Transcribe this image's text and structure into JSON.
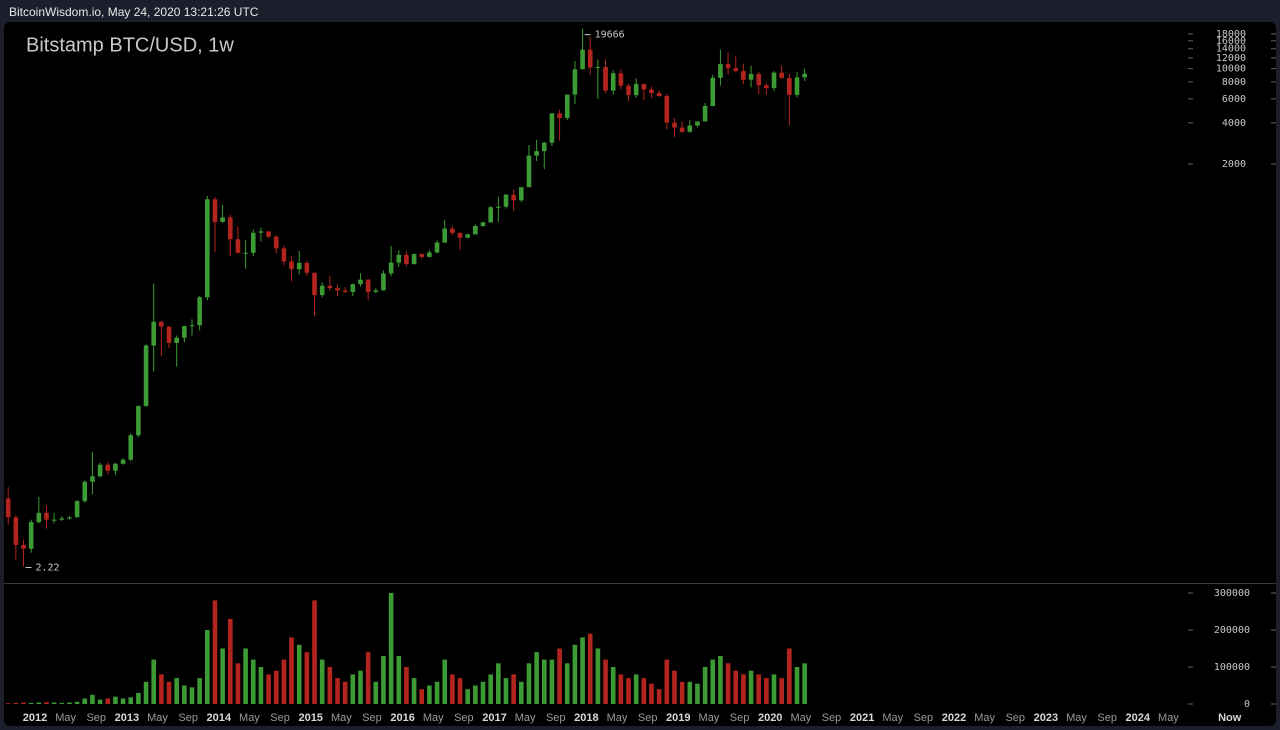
{
  "header": "BitcoinWisdom.io, May 24, 2020 13:21:26 UTC",
  "chart_data": {
    "type": "candlestick",
    "title": "Bitstamp BTC/USD, 1w",
    "log_scale": true,
    "up_color": "#3d9b35",
    "down_color": "#b3241e",
    "x": [
      "2011-09",
      "2011-10",
      "2011-11",
      "2011-12",
      "2012-01",
      "2012-02",
      "2012-03",
      "2012-04",
      "2012-05",
      "2012-06",
      "2012-07",
      "2012-08",
      "2012-09",
      "2012-10",
      "2012-11",
      "2012-12",
      "2013-01",
      "2013-02",
      "2013-03",
      "2013-04",
      "2013-05",
      "2013-06",
      "2013-07",
      "2013-08",
      "2013-09",
      "2013-10",
      "2013-11",
      "2013-12",
      "2014-01",
      "2014-02",
      "2014-03",
      "2014-04",
      "2014-05",
      "2014-06",
      "2014-07",
      "2014-08",
      "2014-09",
      "2014-10",
      "2014-11",
      "2014-12",
      "2015-01",
      "2015-02",
      "2015-03",
      "2015-04",
      "2015-05",
      "2015-06",
      "2015-07",
      "2015-08",
      "2015-09",
      "2015-10",
      "2015-11",
      "2015-12",
      "2016-01",
      "2016-02",
      "2016-03",
      "2016-04",
      "2016-05",
      "2016-06",
      "2016-07",
      "2016-08",
      "2016-09",
      "2016-10",
      "2016-11",
      "2016-12",
      "2017-01",
      "2017-02",
      "2017-03",
      "2017-04",
      "2017-05",
      "2017-06",
      "2017-07",
      "2017-08",
      "2017-09",
      "2017-10",
      "2017-11",
      "2017-12",
      "2018-01",
      "2018-02",
      "2018-03",
      "2018-04",
      "2018-05",
      "2018-06",
      "2018-07",
      "2018-08",
      "2018-09",
      "2018-10",
      "2018-11",
      "2018-12",
      "2019-01",
      "2019-02",
      "2019-03",
      "2019-04",
      "2019-05",
      "2019-06",
      "2019-07",
      "2019-08",
      "2019-09",
      "2019-10",
      "2019-11",
      "2019-12",
      "2020-01",
      "2020-02",
      "2020-03",
      "2020-04",
      "2020-05"
    ],
    "open": [
      7,
      5.1,
      3.2,
      3.0,
      4.7,
      5.5,
      4.9,
      4.9,
      5.0,
      5.1,
      6.7,
      9.3,
      10.2,
      12.4,
      11.2,
      12.6,
      13.5,
      20.4,
      33.4,
      93,
      139,
      128,
      97,
      106,
      129,
      131,
      210,
      1100,
      750,
      810,
      560,
      445,
      445,
      625,
      640,
      585,
      480,
      385,
      338,
      375,
      318,
      218,
      255,
      245,
      236,
      230,
      262,
      283,
      230,
      236,
      314,
      377,
      430,
      368,
      436,
      415,
      448,
      530,
      670,
      624,
      575,
      609,
      700,
      745,
      960,
      970,
      1190,
      1080,
      1350,
      2300,
      2480,
      2860,
      4700,
      4340,
      6450,
      9900,
      13800,
      10200,
      10300,
      6900,
      9250,
      7500,
      6390,
      7730,
      7030,
      6630,
      6300,
      4020,
      3700,
      3440,
      3830,
      4100,
      5320,
      8570,
      10800,
      10080,
      9600,
      8300,
      9150,
      7550,
      7200,
      9350,
      8550,
      6420,
      8630
    ],
    "high": [
      8.5,
      5.3,
      3.5,
      4.9,
      7.2,
      6.2,
      5.5,
      5.2,
      5.2,
      6.8,
      9.5,
      15.4,
      12.8,
      12.9,
      12.8,
      13.8,
      21,
      34,
      95,
      266,
      140,
      129,
      110,
      130,
      145,
      215,
      1163,
      1140,
      1000,
      850,
      700,
      550,
      660,
      680,
      640,
      600,
      500,
      420,
      460,
      390,
      320,
      270,
      300,
      260,
      250,
      265,
      315,
      285,
      245,
      330,
      500,
      465,
      460,
      440,
      440,
      465,
      550,
      780,
      700,
      625,
      615,
      720,
      750,
      980,
      1150,
      1200,
      1300,
      1350,
      2750,
      3000,
      2900,
      4700,
      4980,
      6450,
      11400,
      19666,
      17200,
      11700,
      11700,
      9750,
      9950,
      7750,
      8500,
      7750,
      7400,
      6900,
      6550,
      4330,
      4100,
      4200,
      4100,
      5600,
      9000,
      13800,
      13200,
      12300,
      10900,
      10500,
      9500,
      7750,
      9600,
      10500,
      9200,
      9450,
      10000
    ],
    "low": [
      4.5,
      2.5,
      2.22,
      2.8,
      4.6,
      4.2,
      4.6,
      4.8,
      4.9,
      5.1,
      6.5,
      7.5,
      10.0,
      10.6,
      10.5,
      12.4,
      13.2,
      19.8,
      33,
      60,
      78,
      89,
      65,
      98,
      110,
      120,
      200,
      450,
      740,
      420,
      440,
      340,
      420,
      540,
      570,
      440,
      360,
      275,
      310,
      300,
      152,
      210,
      235,
      215,
      225,
      215,
      252,
      200,
      225,
      235,
      300,
      350,
      355,
      365,
      400,
      412,
      440,
      525,
      600,
      470,
      570,
      605,
      690,
      740,
      750,
      940,
      900,
      1050,
      1350,
      2100,
      1830,
      2700,
      2970,
      4200,
      5500,
      10000,
      9000,
      6000,
      6600,
      6430,
      7060,
      5800,
      6100,
      5880,
      6100,
      6200,
      3600,
      3150,
      3350,
      3380,
      3700,
      4080,
      5300,
      7500,
      9100,
      9400,
      7700,
      7300,
      6500,
      6430,
      6850,
      8450,
      3850,
      6150,
      8100
    ],
    "close": [
      5.1,
      3.2,
      3.0,
      4.7,
      5.5,
      4.9,
      4.9,
      5.0,
      5.1,
      6.7,
      9.3,
      10.2,
      12.4,
      11.2,
      12.6,
      13.5,
      20.4,
      33.4,
      93,
      139,
      128,
      97,
      106,
      129,
      131,
      210,
      1100,
      750,
      810,
      560,
      445,
      445,
      625,
      640,
      585,
      480,
      385,
      338,
      375,
      318,
      218,
      255,
      245,
      236,
      230,
      262,
      283,
      230,
      236,
      314,
      377,
      430,
      368,
      436,
      415,
      448,
      530,
      670,
      624,
      575,
      609,
      700,
      745,
      960,
      970,
      1190,
      1080,
      1350,
      2300,
      2480,
      2860,
      4700,
      4340,
      6450,
      9900,
      13800,
      10200,
      10300,
      6900,
      9250,
      7500,
      6390,
      7730,
      7030,
      6630,
      6300,
      4020,
      3700,
      3440,
      3830,
      4100,
      5320,
      8570,
      10800,
      10080,
      9600,
      8300,
      9150,
      7550,
      7200,
      9350,
      8550,
      6420,
      8630,
      9170
    ],
    "volume": [
      2000,
      3000,
      4000,
      3000,
      4000,
      5000,
      4000,
      3000,
      4000,
      6000,
      15000,
      25000,
      12000,
      15000,
      20000,
      15000,
      18000,
      30000,
      60000,
      120000,
      80000,
      60000,
      70000,
      50000,
      45000,
      70000,
      200000,
      280000,
      150000,
      230000,
      110000,
      150000,
      120000,
      100000,
      80000,
      90000,
      120000,
      180000,
      160000,
      140000,
      280000,
      120000,
      100000,
      70000,
      60000,
      80000,
      90000,
      140000,
      60000,
      130000,
      300000,
      130000,
      100000,
      70000,
      40000,
      50000,
      60000,
      120000,
      80000,
      70000,
      40000,
      50000,
      60000,
      80000,
      110000,
      70000,
      80000,
      60000,
      110000,
      140000,
      120000,
      120000,
      150000,
      110000,
      160000,
      180000,
      190000,
      150000,
      120000,
      100000,
      80000,
      70000,
      80000,
      70000,
      55000,
      40000,
      120000,
      90000,
      60000,
      60000,
      55000,
      100000,
      120000,
      130000,
      110000,
      90000,
      80000,
      90000,
      80000,
      70000,
      80000,
      70000,
      150000,
      100000,
      110000
    ],
    "ylim": [
      1.68,
      22000
    ],
    "yticks": [
      2000,
      4000,
      6000,
      8000,
      10000,
      12000,
      14000,
      16000,
      18000
    ],
    "volume_ylim": [
      0,
      327000
    ],
    "volume_yticks": [
      0,
      100000,
      200000,
      300000
    ],
    "xticks": [
      {
        "value": "2012-01",
        "label": "2012"
      },
      {
        "value": "2012-05",
        "label": "May"
      },
      {
        "value": "2012-09",
        "label": "Sep"
      },
      {
        "value": "2013-01",
        "label": "2013"
      },
      {
        "value": "2013-05",
        "label": "May"
      },
      {
        "value": "2013-09",
        "label": "Sep"
      },
      {
        "value": "2014-01",
        "label": "2014"
      },
      {
        "value": "2014-05",
        "label": "May"
      },
      {
        "value": "2014-09",
        "label": "Sep"
      },
      {
        "value": "2015-01",
        "label": "2015"
      },
      {
        "value": "2015-05",
        "label": "May"
      },
      {
        "value": "2015-09",
        "label": "Sep"
      },
      {
        "value": "2016-01",
        "label": "2016"
      },
      {
        "value": "2016-05",
        "label": "May"
      },
      {
        "value": "2016-09",
        "label": "Sep"
      },
      {
        "value": "2017-01",
        "label": "2017"
      },
      {
        "value": "2017-05",
        "label": "May"
      },
      {
        "value": "2017-09",
        "label": "Sep"
      },
      {
        "value": "2018-01",
        "label": "2018"
      },
      {
        "value": "2018-05",
        "label": "May"
      },
      {
        "value": "2018-09",
        "label": "Sep"
      },
      {
        "value": "2019-01",
        "label": "2019"
      },
      {
        "value": "2019-05",
        "label": "May"
      },
      {
        "value": "2019-09",
        "label": "Sep"
      },
      {
        "value": "2020-01",
        "label": "2020"
      },
      {
        "value": "2020-05",
        "label": "May"
      },
      {
        "value": "2020-09",
        "label": "Sep"
      },
      {
        "value": "2021-01",
        "label": "2021"
      },
      {
        "value": "2021-05",
        "label": "May"
      },
      {
        "value": "2021-09",
        "label": "Sep"
      },
      {
        "value": "2022-01",
        "label": "2022"
      },
      {
        "value": "2022-05",
        "label": "May"
      },
      {
        "value": "2022-09",
        "label": "Sep"
      },
      {
        "value": "2023-01",
        "label": "2023"
      },
      {
        "value": "2023-05",
        "label": "May"
      },
      {
        "value": "2023-09",
        "label": "Sep"
      },
      {
        "value": "2024-01",
        "label": "2024"
      },
      {
        "value": "2024-05",
        "label": "May"
      },
      {
        "value": "2025-01",
        "label": "Now"
      }
    ]
  }
}
